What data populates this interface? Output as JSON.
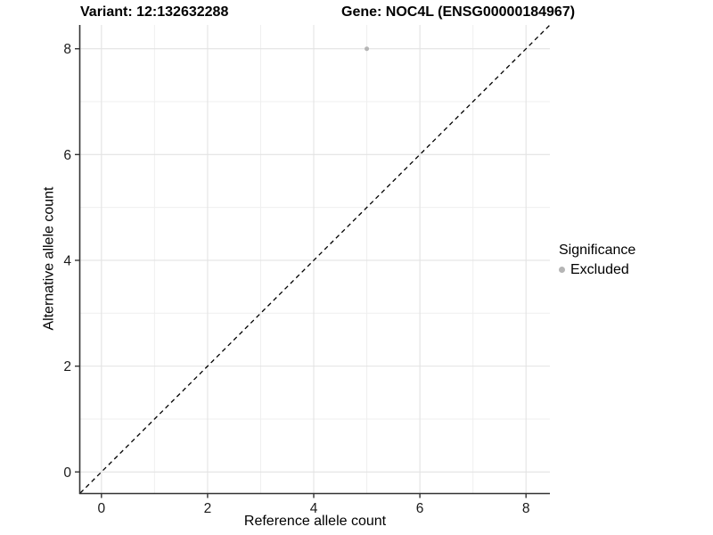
{
  "titles": {
    "variant": "Variant: 12:132632288",
    "gene": "Gene: NOC4L (ENSG00000184967)"
  },
  "chart_data": {
    "type": "scatter",
    "title": "Variant: 12:132632288   Gene: NOC4L (ENSG00000184967)",
    "xlabel": "Reference allele count",
    "ylabel": "Alternative allele count",
    "xlim": [
      -0.4,
      8.45
    ],
    "ylim": [
      -0.4,
      8.45
    ],
    "xticks": [
      0,
      2,
      4,
      6,
      8
    ],
    "yticks": [
      0,
      2,
      4,
      6,
      8
    ],
    "minor_xticks": [
      1,
      3,
      5,
      7
    ],
    "minor_yticks": [
      1,
      3,
      5,
      7
    ],
    "grid": true,
    "reference_line": {
      "type": "identity y=x",
      "style": "dashed",
      "color": "#000000"
    },
    "series": [
      {
        "name": "Excluded",
        "color": "#b5b5b5",
        "marker": "circle",
        "points": [
          {
            "x": 5,
            "y": 8
          }
        ]
      }
    ],
    "legend": {
      "title": "Significance",
      "position": "right",
      "items": [
        {
          "label": "Excluded",
          "color": "#b5b5b5",
          "marker": "circle"
        }
      ]
    },
    "style": {
      "background": "#ffffff",
      "grid_major_color": "#e3e3e3",
      "grid_minor_color": "#efefef",
      "axis_line_color": "#333333",
      "tick_label_color": "#1a1a1a",
      "point_radius": 2.5
    }
  }
}
